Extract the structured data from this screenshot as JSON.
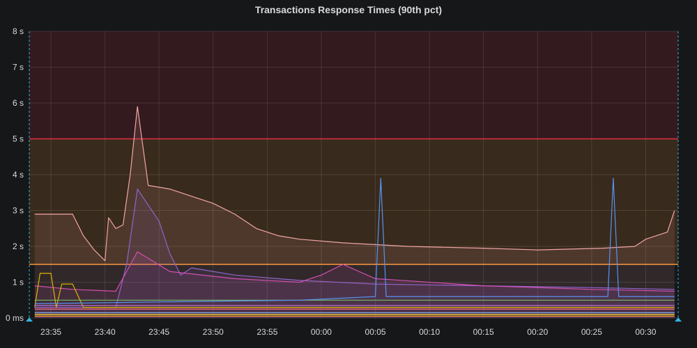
{
  "panel": {
    "title": "Transactions Response Times (90th pct)"
  },
  "chart_data": {
    "type": "line",
    "title": "Transactions Response Times (90th pct)",
    "xlabel": "",
    "ylabel": "",
    "x_ticks": [
      "23:35",
      "23:40",
      "23:45",
      "23:50",
      "23:55",
      "00:00",
      "00:05",
      "00:10",
      "00:15",
      "00:20",
      "00:25",
      "00:30"
    ],
    "x_range": [
      "23:33:00",
      "00:33:00"
    ],
    "y_ticks": [
      "0 ms",
      "1 s",
      "2 s",
      "3 s",
      "4 s",
      "5 s",
      "6 s",
      "7 s",
      "8 s"
    ],
    "ylim": [
      0,
      8
    ],
    "y_unit": "s",
    "grid": true,
    "thresholds": [
      {
        "value": 5.0,
        "color": "#e02f44",
        "fill": "above",
        "fill_color": "#e02f44"
      },
      {
        "value": 1.5,
        "color": "#ff9830",
        "fill": "above",
        "fill_color": "#ff9830"
      }
    ],
    "series": [
      {
        "color": "#f2a6a6",
        "fill": true,
        "points": [
          [
            "23:33:30",
            2.9
          ],
          [
            "23:37:00",
            2.9
          ],
          [
            "23:38:00",
            2.3
          ],
          [
            "23:39:00",
            1.9
          ],
          [
            "23:40:00",
            1.6
          ],
          [
            "23:40:20",
            2.8
          ],
          [
            "23:41:00",
            2.5
          ],
          [
            "23:41:40",
            2.6
          ],
          [
            "23:42:20",
            4.0
          ],
          [
            "23:43:00",
            5.9
          ],
          [
            "23:44:00",
            3.7
          ],
          [
            "23:46:00",
            3.6
          ],
          [
            "23:48:00",
            3.4
          ],
          [
            "23:50:00",
            3.2
          ],
          [
            "23:52:00",
            2.9
          ],
          [
            "23:54:00",
            2.5
          ],
          [
            "23:56:00",
            2.3
          ],
          [
            "23:58:00",
            2.2
          ],
          [
            "00:02:00",
            2.1
          ],
          [
            "00:08:00",
            2.0
          ],
          [
            "00:15:00",
            1.95
          ],
          [
            "00:20:00",
            1.9
          ],
          [
            "00:26:00",
            1.95
          ],
          [
            "00:29:00",
            2.0
          ],
          [
            "00:30:00",
            2.2
          ],
          [
            "00:32:00",
            2.4
          ],
          [
            "00:32:40",
            3.0
          ]
        ]
      },
      {
        "color": "#8f65c9",
        "fill": true,
        "points": [
          [
            "23:33:30",
            0.3
          ],
          [
            "23:41:00",
            0.3
          ],
          [
            "23:42:00",
            1.5
          ],
          [
            "23:43:00",
            3.6
          ],
          [
            "23:45:00",
            2.7
          ],
          [
            "23:46:00",
            1.8
          ],
          [
            "23:47:00",
            1.2
          ],
          [
            "23:48:00",
            1.4
          ],
          [
            "23:52:00",
            1.2
          ],
          [
            "23:58:00",
            1.05
          ],
          [
            "00:05:00",
            0.95
          ],
          [
            "00:15:00",
            0.9
          ],
          [
            "00:25:00",
            0.85
          ],
          [
            "00:32:40",
            0.8
          ]
        ]
      },
      {
        "color": "#d44fb2",
        "fill": true,
        "points": [
          [
            "23:33:30",
            0.9
          ],
          [
            "23:37:00",
            0.8
          ],
          [
            "23:41:00",
            0.75
          ],
          [
            "23:43:00",
            1.85
          ],
          [
            "23:46:00",
            1.3
          ],
          [
            "23:52:00",
            1.1
          ],
          [
            "23:58:00",
            1.0
          ],
          [
            "00:00:00",
            1.2
          ],
          [
            "00:02:00",
            1.5
          ],
          [
            "00:05:00",
            1.1
          ],
          [
            "00:15:00",
            0.9
          ],
          [
            "00:25:00",
            0.8
          ],
          [
            "00:32:40",
            0.75
          ]
        ]
      },
      {
        "color": "#e0b400",
        "fill": false,
        "points": [
          [
            "23:33:30",
            0.3
          ],
          [
            "23:34:00",
            1.25
          ],
          [
            "23:35:00",
            1.25
          ],
          [
            "23:35:30",
            0.3
          ],
          [
            "23:36:00",
            0.95
          ],
          [
            "23:37:00",
            0.95
          ],
          [
            "23:38:00",
            0.3
          ],
          [
            "00:32:40",
            0.3
          ]
        ]
      },
      {
        "color": "#73bf69",
        "fill": false,
        "points": [
          [
            "23:33:30",
            0.5
          ],
          [
            "00:32:40",
            0.5
          ]
        ]
      },
      {
        "color": "#5794f2",
        "fill": false,
        "points": [
          [
            "23:33:30",
            0.4
          ],
          [
            "23:45:00",
            0.45
          ],
          [
            "23:58:00",
            0.5
          ],
          [
            "00:05:00",
            0.6
          ],
          [
            "00:05:30",
            3.9
          ],
          [
            "00:06:00",
            0.6
          ],
          [
            "00:26:30",
            0.6
          ],
          [
            "00:27:00",
            3.9
          ],
          [
            "00:27:30",
            0.6
          ],
          [
            "00:32:40",
            0.6
          ]
        ]
      },
      {
        "color": "#b877d9",
        "fill": false,
        "points": [
          [
            "23:33:30",
            0.35
          ],
          [
            "00:32:40",
            0.35
          ]
        ]
      },
      {
        "color": "#ff7383",
        "fill": false,
        "points": [
          [
            "23:33:30",
            0.25
          ],
          [
            "00:32:40",
            0.25
          ]
        ]
      },
      {
        "color": "#8ab8ff",
        "fill": false,
        "points": [
          [
            "23:33:30",
            0.15
          ],
          [
            "00:32:40",
            0.15
          ]
        ]
      },
      {
        "color": "#fade2a",
        "fill": false,
        "points": [
          [
            "23:33:30",
            0.1
          ],
          [
            "00:32:40",
            0.1
          ]
        ]
      },
      {
        "color": "#ff9830",
        "fill": false,
        "points": [
          [
            "23:33:30",
            0.05
          ],
          [
            "00:32:40",
            0.05
          ]
        ]
      }
    ]
  }
}
